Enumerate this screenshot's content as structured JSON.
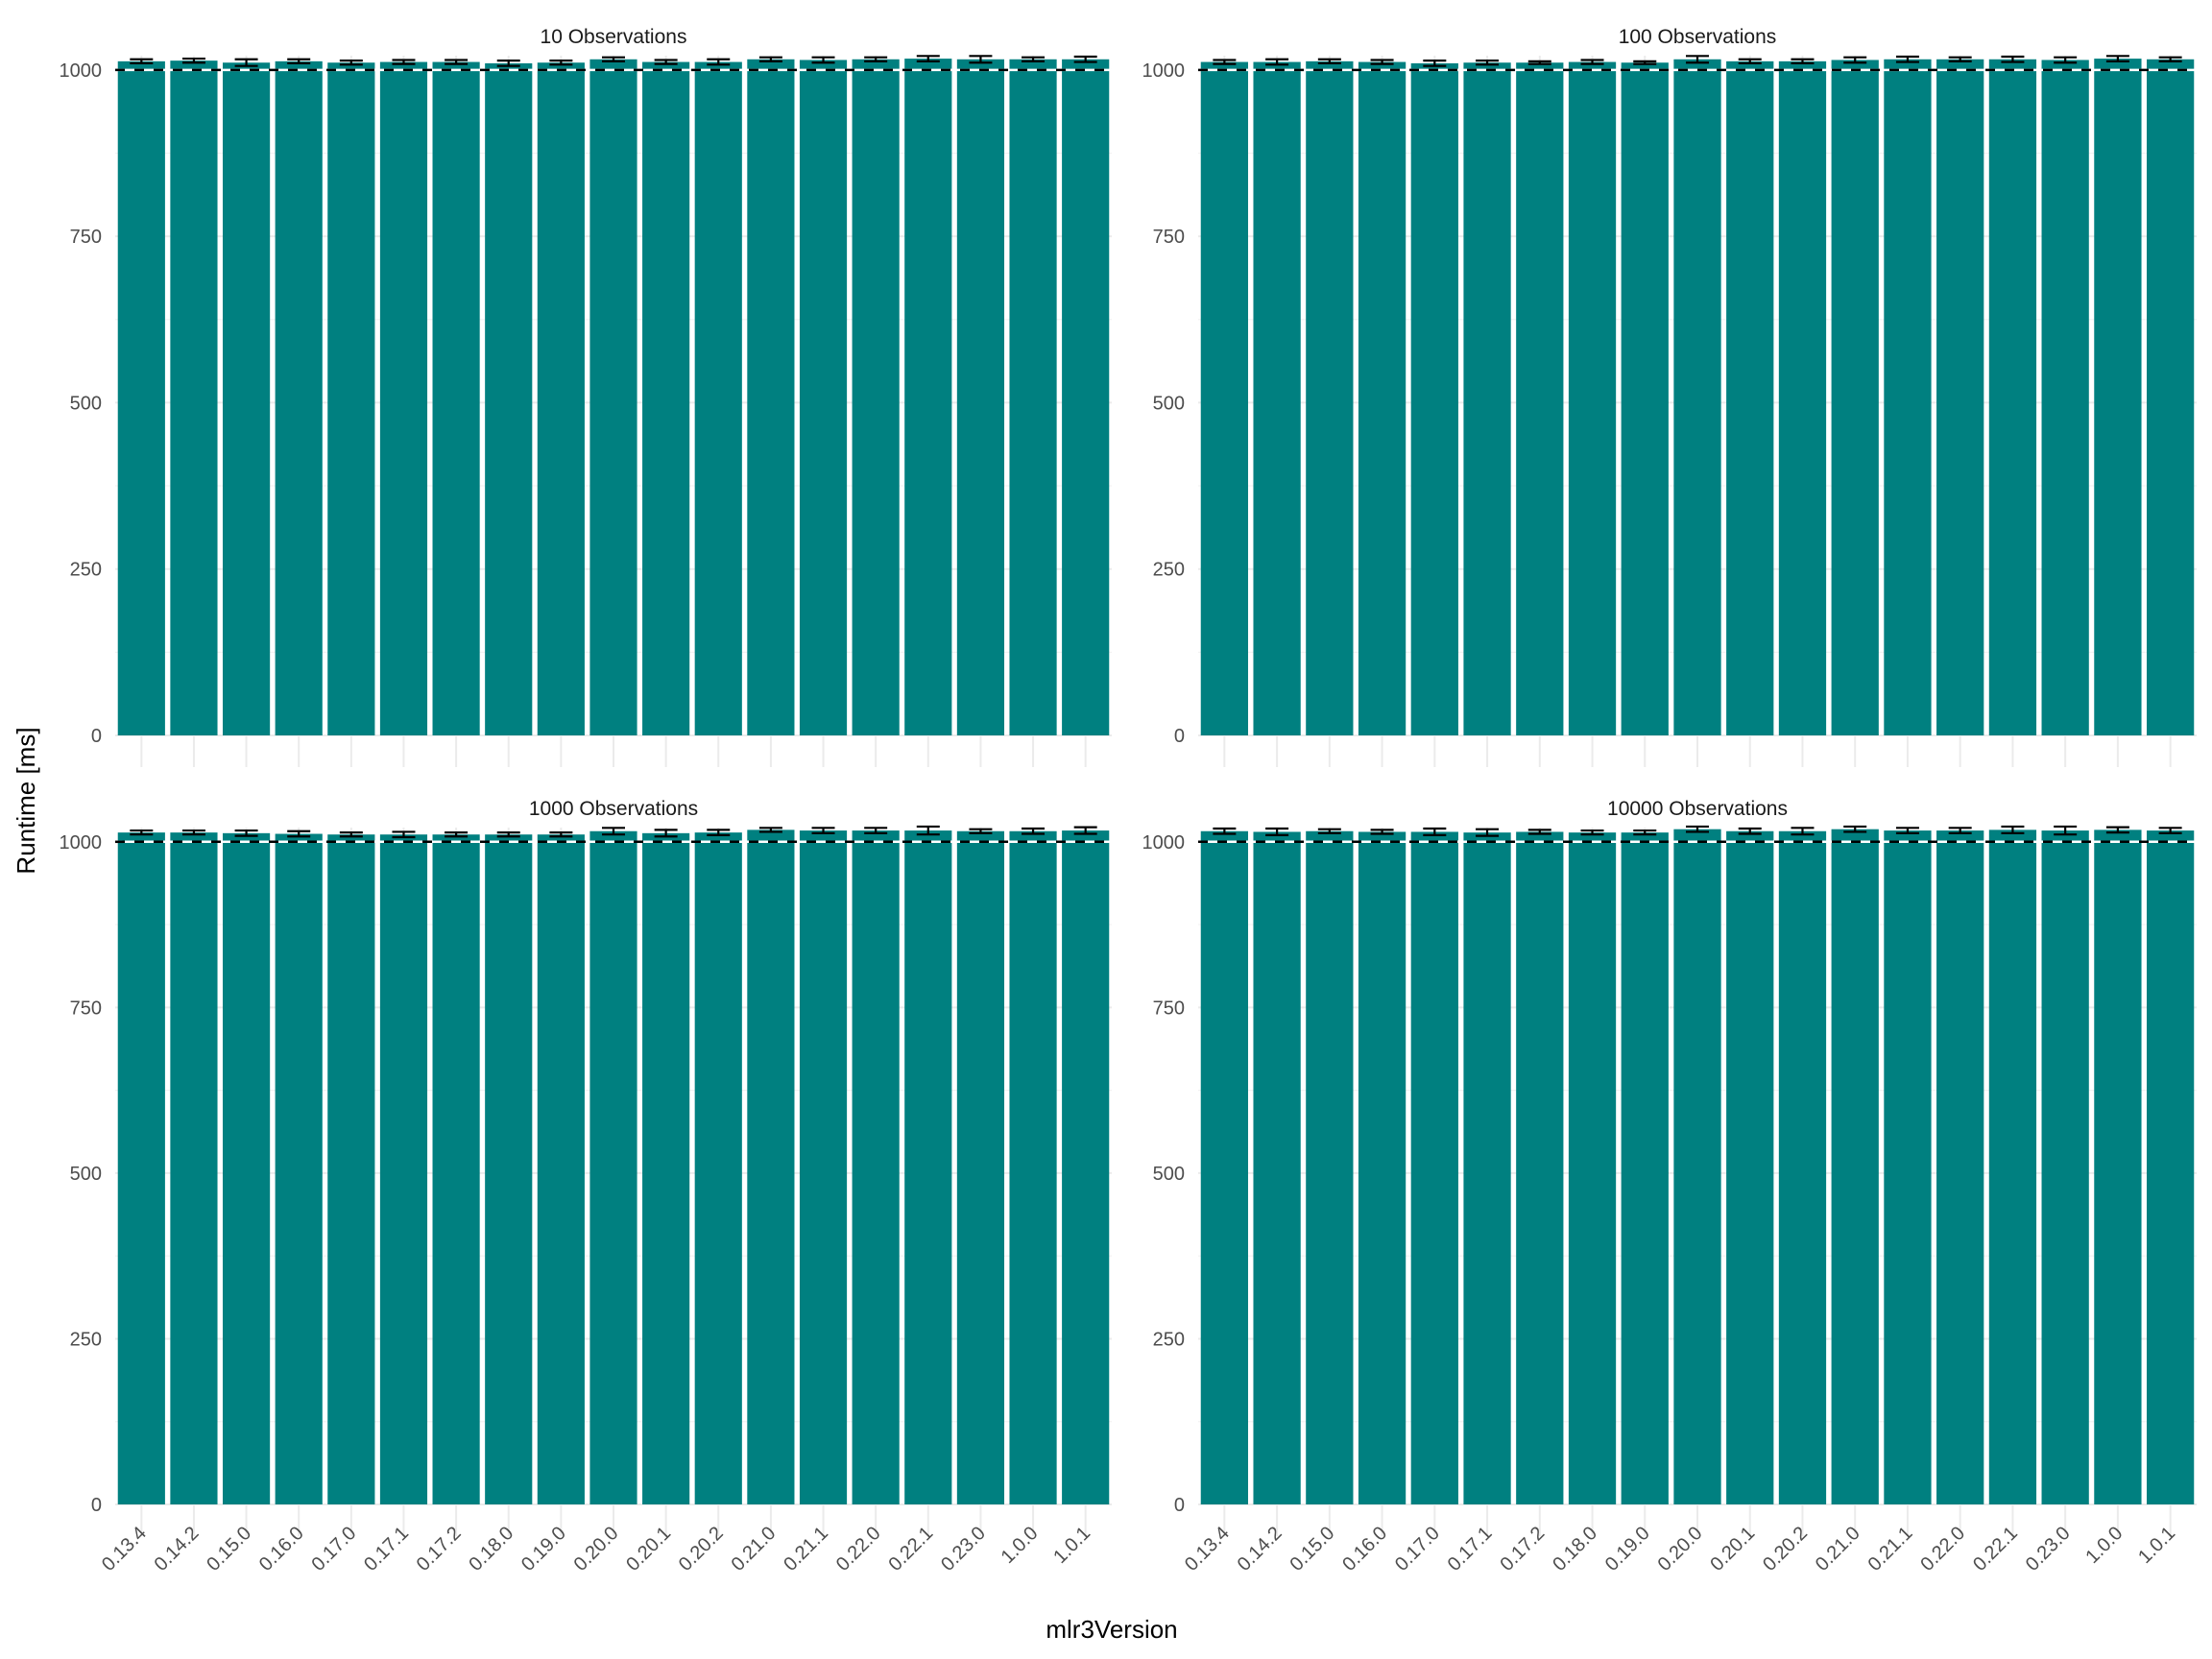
{
  "chart_data": {
    "type": "bar",
    "xlabel": "mlr3Version",
    "ylabel": "Runtime [ms]",
    "ylim": [
      0,
      1020
    ],
    "yticks": [
      0,
      250,
      500,
      750,
      1000
    ],
    "reference_line": 1000,
    "bar_color": "#008080",
    "grid": true,
    "categories": [
      "0.13.4",
      "0.14.2",
      "0.15.0",
      "0.16.0",
      "0.17.0",
      "0.17.1",
      "0.17.2",
      "0.18.0",
      "0.19.0",
      "0.20.0",
      "0.20.1",
      "0.20.2",
      "0.21.0",
      "0.21.1",
      "0.22.0",
      "0.22.1",
      "0.23.0",
      "1.0.0",
      "1.0.1"
    ],
    "panels": [
      {
        "title": "10 Observations",
        "values": [
          1013,
          1014,
          1011,
          1013,
          1011,
          1012,
          1012,
          1010,
          1011,
          1016,
          1012,
          1012,
          1016,
          1015,
          1016,
          1017,
          1016,
          1016,
          1016
        ],
        "errors": [
          3,
          3,
          5,
          3,
          3,
          3,
          3,
          4,
          3,
          3,
          3,
          4,
          3,
          4,
          3,
          4,
          5,
          3,
          4
        ]
      },
      {
        "title": "100 Observations",
        "values": [
          1012,
          1012,
          1013,
          1012,
          1010,
          1011,
          1011,
          1012,
          1011,
          1016,
          1013,
          1013,
          1015,
          1016,
          1016,
          1016,
          1015,
          1017,
          1016
        ],
        "errors": [
          3,
          4,
          3,
          3,
          4,
          3,
          2,
          3,
          2,
          5,
          3,
          3,
          4,
          4,
          3,
          4,
          4,
          4,
          3
        ]
      },
      {
        "title": "1000 Observations",
        "values": [
          1014,
          1014,
          1013,
          1012,
          1011,
          1011,
          1011,
          1011,
          1011,
          1016,
          1013,
          1014,
          1018,
          1017,
          1017,
          1017,
          1016,
          1016,
          1017
        ],
        "errors": [
          3,
          3,
          4,
          4,
          3,
          4,
          3,
          3,
          3,
          5,
          5,
          4,
          3,
          4,
          4,
          6,
          3,
          4,
          5
        ]
      },
      {
        "title": "10000 Observations",
        "values": [
          1016,
          1015,
          1016,
          1015,
          1015,
          1014,
          1015,
          1014,
          1014,
          1019,
          1016,
          1016,
          1019,
          1017,
          1017,
          1018,
          1017,
          1018,
          1017
        ],
        "errors": [
          4,
          5,
          3,
          3,
          5,
          5,
          3,
          3,
          3,
          4,
          4,
          5,
          4,
          4,
          4,
          5,
          6,
          4,
          4
        ]
      }
    ]
  }
}
